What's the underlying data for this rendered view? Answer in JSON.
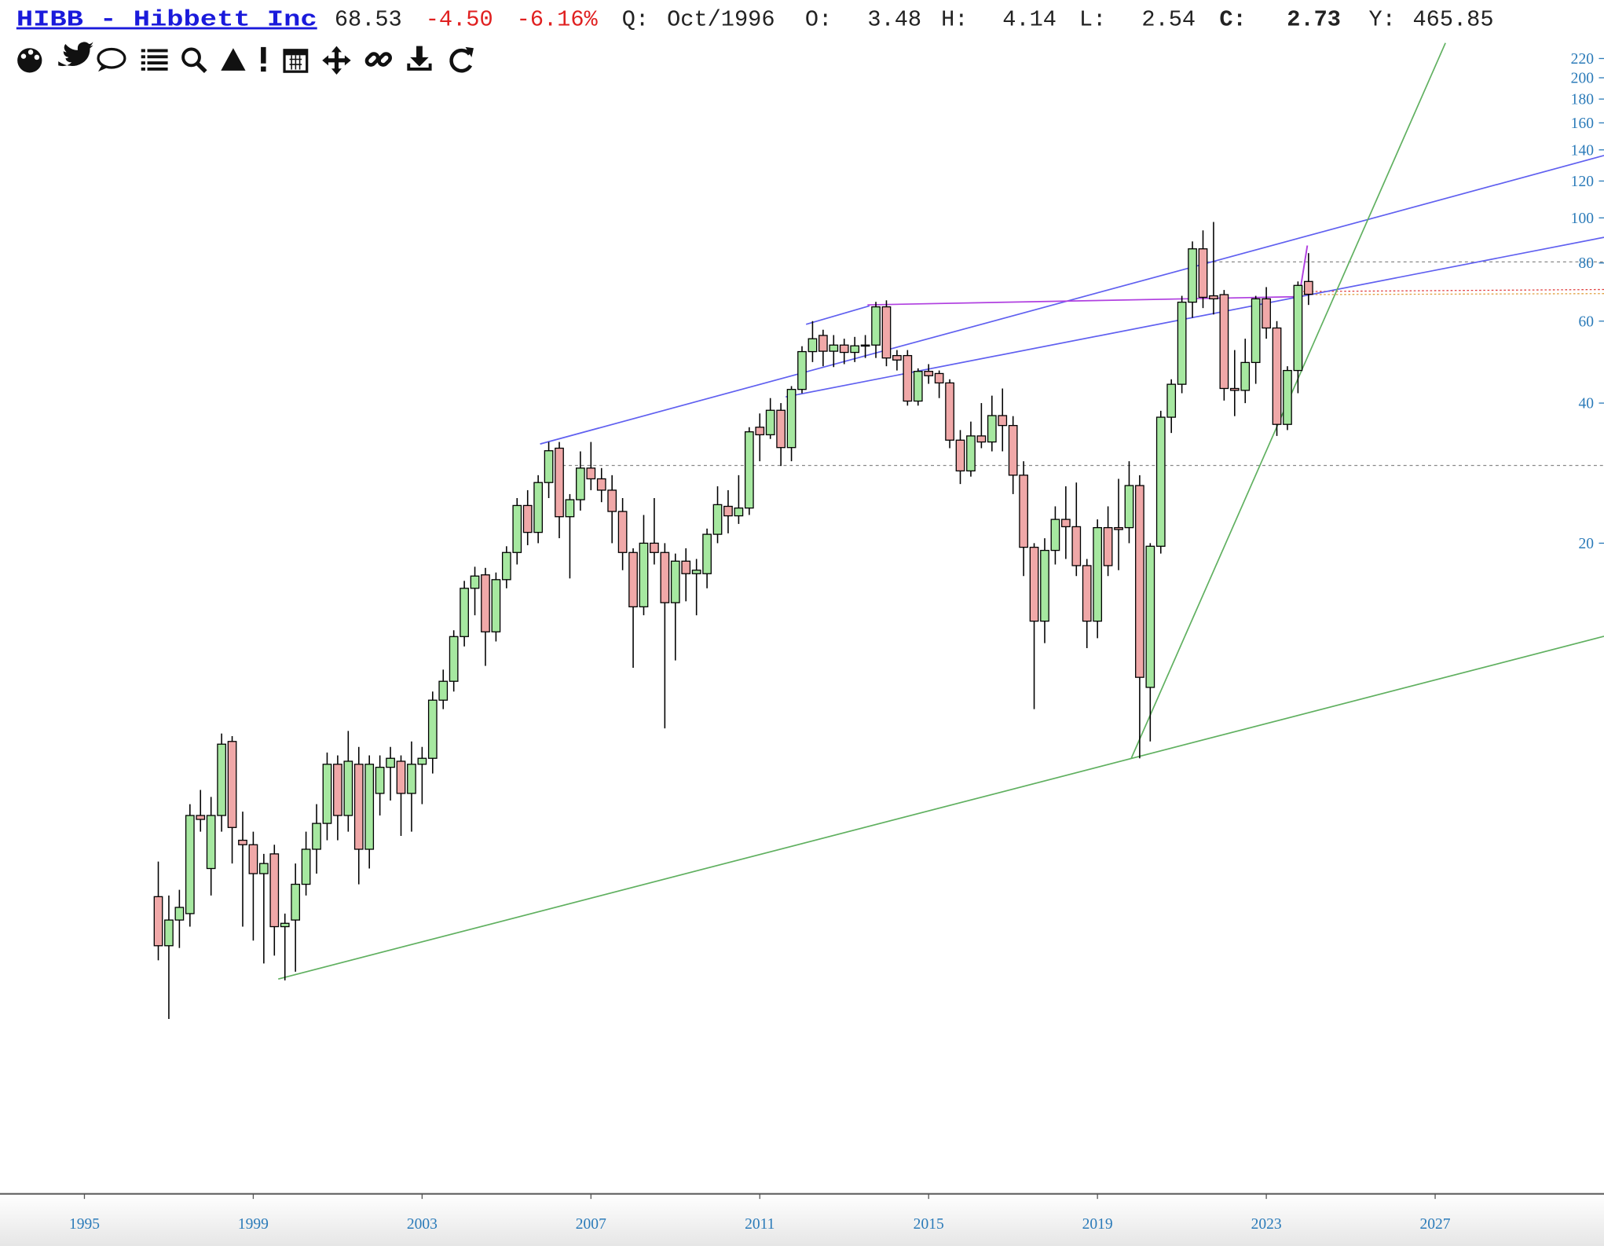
{
  "header": {
    "title": "HIBB - Hibbett Inc",
    "change": "-4.50",
    "change_pct": "-6.16%",
    "period_label": "Q:",
    "period": "Oct/1996",
    "open_label": "O:",
    "high_label": "H:",
    "low_label": "L:",
    "close_label": "C:",
    "y_label": "Y:",
    "y_value": "465.85"
  },
  "chart_data": {
    "type": "candlestick",
    "log_scale": true,
    "grid": false,
    "up_color": "#a6e8a0",
    "down_color": "#f0a8a8",
    "wick_color": "#000000",
    "xlim": [
      1993,
      2031
    ],
    "xticks": [
      1995,
      1999,
      2003,
      2007,
      2011,
      2015,
      2019,
      2023,
      2027
    ],
    "ylim": [
      0.8,
      240
    ],
    "yticks": [
      20,
      40,
      60,
      80,
      100,
      120,
      140,
      160,
      180,
      200,
      220
    ],
    "x": [
      1996.75,
      1997,
      1997.25,
      1997.5,
      1997.75,
      1998,
      1998.25,
      1998.5,
      1998.75,
      1999,
      1999.25,
      1999.5,
      1999.75,
      2000,
      2000.25,
      2000.5,
      2000.75,
      2001,
      2001.25,
      2001.5,
      2001.75,
      2002,
      2002.25,
      2002.5,
      2002.75,
      2003,
      2003.25,
      2003.5,
      2003.75,
      2004,
      2004.25,
      2004.5,
      2004.75,
      2005,
      2005.25,
      2005.5,
      2005.75,
      2006,
      2006.25,
      2006.5,
      2006.75,
      2007,
      2007.25,
      2007.5,
      2007.75,
      2008,
      2008.25,
      2008.5,
      2008.75,
      2009,
      2009.25,
      2009.5,
      2009.75,
      2010,
      2010.25,
      2010.5,
      2010.75,
      2011,
      2011.25,
      2011.5,
      2011.75,
      2012,
      2012.25,
      2012.5,
      2012.75,
      2013,
      2013.25,
      2013.5,
      2013.75,
      2014,
      2014.25,
      2014.5,
      2014.75,
      2015,
      2015.25,
      2015.5,
      2015.75,
      2016,
      2016.25,
      2016.5,
      2016.75,
      2017,
      2017.25,
      2017.5,
      2017.75,
      2018,
      2018.25,
      2018.5,
      2018.75,
      2019,
      2019.25,
      2019.5,
      2019.75,
      2020,
      2020.25,
      2020.5,
      2020.75,
      2021,
      2021.25,
      2021.5,
      2021.75,
      2022,
      2022.25,
      2022.5,
      2022.75,
      2023,
      2023.25,
      2023.5,
      2023.75,
      2024
    ],
    "open": [
      3.48,
      2.73,
      3.1,
      3.2,
      5.2,
      4,
      5.2,
      7.5,
      4.6,
      4.5,
      3.9,
      4.3,
      3,
      3.1,
      3.7,
      4.4,
      5,
      6.7,
      5.2,
      6.7,
      4.4,
      5.8,
      6.6,
      6.8,
      5.8,
      6.7,
      6.9,
      9.2,
      10.1,
      12.6,
      16,
      17.1,
      12.9,
      16.7,
      19.1,
      24.1,
      21.1,
      27,
      32,
      22.8,
      24.8,
      29,
      27.5,
      26,
      23.4,
      19.1,
      14.6,
      20,
      19.1,
      14.9,
      18.3,
      17.2,
      17.2,
      20.9,
      24,
      22.9,
      23.8,
      35.5,
      34.2,
      38.6,
      32.1,
      42.8,
      51.6,
      55.9,
      51.7,
      53.3,
      51.4,
      53.1,
      53.3,
      64.4,
      50.6,
      50.6,
      40.4,
      46.8,
      46.3,
      44.2,
      33.3,
      28.6,
      34,
      33,
      37.6,
      35.8,
      28,
      19.6,
      13.6,
      19.3,
      22.5,
      21.7,
      17.9,
      13.6,
      21.6,
      21.6,
      21.6,
      26.6,
      9.8,
      19.7,
      37.3,
      43.9,
      65.9,
      85.8,
      68,
      68.4,
      43,
      42.6,
      48.9,
      67,
      58,
      36,
      47,
      73
    ],
    "high": [
      4.14,
      3.5,
      3.6,
      5.5,
      5.9,
      5.7,
      7.8,
      7.7,
      5.3,
      4.8,
      4.3,
      4.5,
      3.2,
      4.1,
      4.8,
      5.5,
      7.1,
      7,
      7.9,
      7.3,
      7,
      7,
      7.3,
      7,
      7.5,
      7.3,
      9.6,
      10.7,
      13,
      16.6,
      17.8,
      17.7,
      17.3,
      19.7,
      25,
      26,
      28,
      33,
      33,
      25.5,
      31.5,
      33,
      29,
      28,
      25,
      19.5,
      23,
      25,
      20,
      19,
      19.5,
      18.5,
      21.5,
      26.5,
      26,
      28,
      35.5,
      38,
      41,
      40,
      43.5,
      53,
      60,
      57.5,
      56,
      55,
      55.5,
      56,
      66,
      66.5,
      52,
      52,
      47.5,
      48.5,
      47,
      45,
      35,
      36.5,
      40,
      41.5,
      43,
      37.5,
      30,
      20,
      20.5,
      24,
      26.5,
      27,
      18.5,
      22.5,
      24,
      27.5,
      30,
      28,
      20,
      38.5,
      45,
      68,
      89,
      94,
      98,
      70,
      52,
      55,
      68,
      71,
      60,
      48,
      73,
      84
    ],
    "low": [
      2.54,
      1.9,
      2.7,
      3,
      4.8,
      3.5,
      4.8,
      4.1,
      3,
      2.8,
      2.5,
      2.6,
      2.3,
      2.4,
      3.5,
      3.9,
      4.6,
      4.6,
      4.8,
      3.7,
      4,
      5.2,
      5.6,
      4.7,
      4.8,
      5.5,
      6.4,
      8.8,
      9.6,
      12,
      14,
      10.9,
      12.3,
      16,
      18,
      19.8,
      20,
      25,
      20.5,
      16.8,
      23.5,
      26,
      24.5,
      20,
      17.5,
      10.8,
      14,
      18,
      8,
      11.2,
      15,
      14,
      16,
      20,
      21,
      22,
      23,
      30,
      33.5,
      29.3,
      30,
      42,
      49,
      48,
      47.8,
      48.5,
      49,
      50,
      50,
      48,
      47,
      39.5,
      39.5,
      44,
      41,
      32,
      26.8,
      27.8,
      32,
      31.5,
      31.5,
      25.5,
      17,
      8.8,
      12.2,
      18,
      18.5,
      17,
      11.9,
      12.5,
      17,
      17.5,
      20,
      6.9,
      7.5,
      19,
      34.5,
      42,
      61,
      64,
      62,
      40.5,
      37.5,
      40,
      44,
      55,
      34,
      35,
      42,
      65
    ],
    "close": [
      2.73,
      3.1,
      3.3,
      5.2,
      5.1,
      5.2,
      7.4,
      4.9,
      4.5,
      3.9,
      4.1,
      3,
      3.05,
      3.7,
      4.4,
      5,
      6.7,
      5.2,
      6.8,
      4.4,
      6.7,
      6.6,
      6.9,
      5.8,
      6.7,
      6.9,
      9.2,
      10.1,
      12.6,
      16,
      17,
      12.9,
      16.7,
      19.1,
      24.1,
      21.1,
      27,
      31.6,
      22.8,
      24.8,
      29,
      27.5,
      26,
      23.4,
      19.1,
      14.6,
      20,
      19.1,
      14.9,
      18.3,
      17.2,
      17.5,
      20.9,
      24.2,
      22.9,
      23.8,
      34.7,
      34.2,
      38.6,
      32.1,
      42.8,
      51.6,
      55,
      51.7,
      53.3,
      51.4,
      53.1,
      53.3,
      64.4,
      50,
      49.5,
      40.4,
      46.8,
      45.8,
      44.2,
      33.3,
      28.6,
      34,
      33,
      37.6,
      35.8,
      28,
      19.6,
      13.6,
      19.3,
      22.5,
      21.7,
      17.9,
      13.6,
      21.6,
      17.9,
      21.4,
      26.6,
      10.3,
      19.7,
      37.3,
      43.9,
      65.9,
      85.8,
      67.5,
      67,
      43,
      42.6,
      48.9,
      67,
      58,
      36,
      47,
      71.6,
      68.53
    ]
  }
}
